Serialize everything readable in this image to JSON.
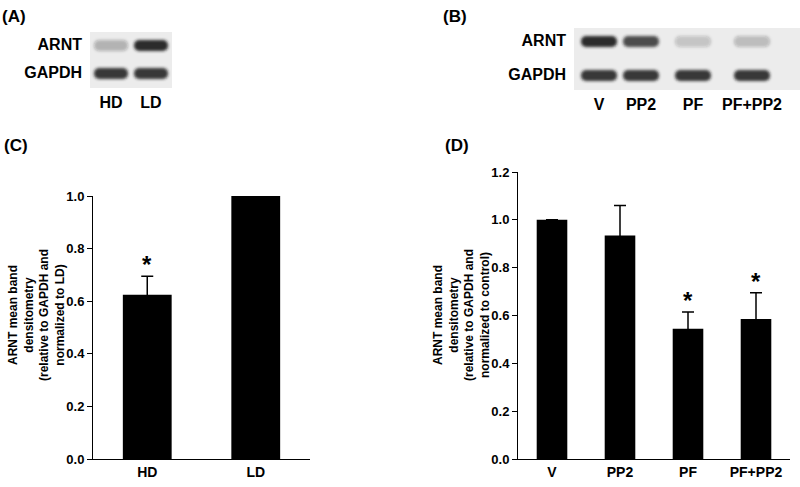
{
  "blots": [
    {
      "label": "(A)",
      "rows": [
        "ARNT",
        "GAPDH"
      ],
      "lanes": [
        "HD",
        "LD"
      ]
    },
    {
      "label": "(B)",
      "rows": [
        "ARNT",
        "GAPDH"
      ],
      "lanes": [
        "V",
        "PP2",
        "PF",
        "PF+PP2"
      ]
    }
  ],
  "chart_data": [
    {
      "type": "bar",
      "title": "(C)",
      "y_label": "ARNT mean band\ndensitometry\n(relative to GAPDH and\nnormalized to LD)",
      "categories": [
        "HD",
        "LD"
      ],
      "values": [
        0.625,
        1.0
      ],
      "errors": [
        0.07,
        0
      ],
      "color": "#000000",
      "ylim": [
        0,
        1.0
      ],
      "yticks": [
        {
          "value": 0,
          "label": "0.0"
        },
        0.2,
        0.4,
        0.6,
        0.8,
        {
          "value": 1,
          "label": "1.0"
        }
      ],
      "grid": false,
      "annotations": [
        {
          "category": "HD",
          "text": "*"
        }
      ]
    },
    {
      "type": "bar",
      "title": "(D)",
      "y_label": "ARNT mean band\ndensitometry\n(relative to GAPDH and\nnormalized to control)",
      "categories": [
        "V",
        "PP2",
        "PF",
        "PF+PP2"
      ],
      "values": [
        1.0,
        0.935,
        0.545,
        0.585
      ],
      "errors": [
        0,
        0.125,
        0.07,
        0.11
      ],
      "color": "#000000",
      "ylim": [
        0,
        1.2
      ],
      "yticks": [
        {
          "value": 0,
          "label": "0.0"
        },
        0.2,
        0.4,
        0.6,
        0.8,
        {
          "value": 1,
          "label": "1.0"
        },
        1.2
      ],
      "grid": false,
      "annotations": [
        {
          "category": "PF",
          "text": "*"
        },
        {
          "category": "PF+PP2",
          "text": "*"
        }
      ]
    }
  ]
}
